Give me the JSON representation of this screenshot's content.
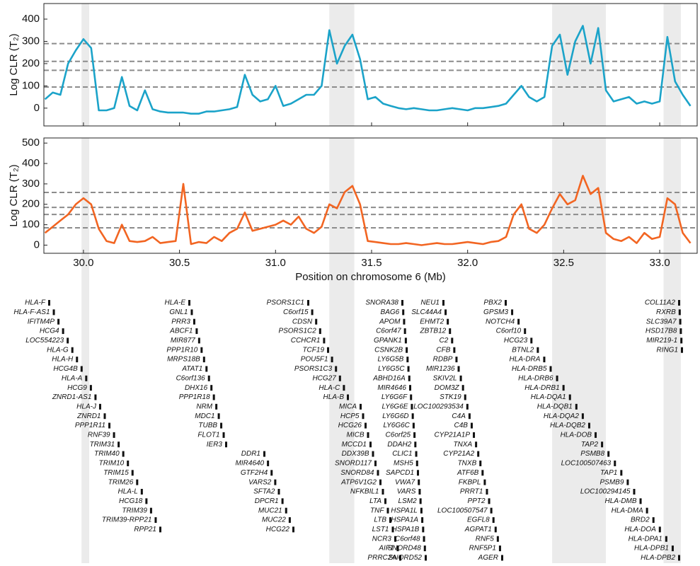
{
  "chart_data": [
    {
      "type": "line",
      "ylabel": "Log CLR (T₂)",
      "color": "#1ba3c9",
      "xlim": [
        29.794,
        33.195
      ],
      "ylim": [
        -80,
        470
      ],
      "yticks": [
        0,
        100,
        200,
        300,
        400
      ],
      "hlines": [
        95,
        170,
        210,
        290
      ],
      "shaded": [
        [
          29.99,
          30.03
        ],
        [
          31.28,
          31.41
        ],
        [
          32.44,
          32.72
        ],
        [
          33.02,
          33.11
        ]
      ],
      "x": [
        29.8,
        29.84,
        29.88,
        29.92,
        29.96,
        30,
        30.04,
        30.08,
        30.12,
        30.16,
        30.2,
        30.24,
        30.28,
        30.32,
        30.36,
        30.4,
        30.44,
        30.48,
        30.52,
        30.56,
        30.6,
        30.64,
        30.68,
        30.72,
        30.76,
        30.8,
        30.84,
        30.88,
        30.92,
        30.96,
        31,
        31.04,
        31.08,
        31.12,
        31.16,
        31.2,
        31.24,
        31.28,
        31.32,
        31.36,
        31.4,
        31.44,
        31.48,
        31.52,
        31.56,
        31.6,
        31.64,
        31.68,
        31.72,
        31.76,
        31.8,
        31.84,
        31.88,
        31.92,
        31.96,
        32,
        32.04,
        32.08,
        32.12,
        32.16,
        32.2,
        32.24,
        32.28,
        32.32,
        32.36,
        32.4,
        32.44,
        32.48,
        32.52,
        32.56,
        32.6,
        32.64,
        32.68,
        32.72,
        32.76,
        32.8,
        32.84,
        32.88,
        32.92,
        32.96,
        33,
        33.04,
        33.08,
        33.12,
        33.16
      ],
      "values": [
        40,
        70,
        60,
        200,
        260,
        310,
        270,
        -10,
        -10,
        0,
        140,
        10,
        -10,
        80,
        -5,
        -15,
        -20,
        -20,
        -20,
        -25,
        -25,
        -15,
        -15,
        -10,
        -5,
        5,
        150,
        60,
        30,
        40,
        100,
        10,
        20,
        40,
        60,
        60,
        100,
        350,
        200,
        280,
        330,
        220,
        40,
        50,
        20,
        10,
        0,
        -5,
        0,
        -5,
        -10,
        -10,
        -5,
        0,
        -5,
        -10,
        0,
        0,
        5,
        10,
        20,
        60,
        100,
        50,
        30,
        50,
        280,
        330,
        150,
        300,
        370,
        200,
        360,
        80,
        30,
        40,
        50,
        20,
        30,
        20,
        30,
        320,
        120,
        60,
        10
      ]
    },
    {
      "type": "line",
      "ylabel": "Log CLR (T₂)",
      "xlabel": "Position on chromosome 6 (Mb)",
      "color": "#f26522",
      "xlim": [
        29.794,
        33.195
      ],
      "ylim": [
        -40,
        525
      ],
      "yticks": [
        0,
        100,
        200,
        300,
        400,
        500
      ],
      "xticks": [
        {
          "value": 30,
          "label": "30.0"
        },
        30.5,
        {
          "value": 31,
          "label": "31.0"
        },
        31.5,
        {
          "value": 32,
          "label": "32.0"
        },
        32.5,
        {
          "value": 33,
          "label": "33.0"
        }
      ],
      "hlines": [
        85,
        150,
        185,
        258
      ],
      "shaded": [
        [
          29.99,
          30.03
        ],
        [
          31.28,
          31.41
        ],
        [
          32.44,
          32.72
        ],
        [
          33.02,
          33.11
        ]
      ],
      "x": [
        29.8,
        29.84,
        29.88,
        29.92,
        29.96,
        30,
        30.04,
        30.08,
        30.12,
        30.16,
        30.2,
        30.24,
        30.28,
        30.32,
        30.36,
        30.4,
        30.44,
        30.48,
        30.52,
        30.56,
        30.6,
        30.64,
        30.68,
        30.72,
        30.76,
        30.8,
        30.84,
        30.88,
        30.92,
        30.96,
        31,
        31.04,
        31.08,
        31.12,
        31.16,
        31.2,
        31.24,
        31.28,
        31.32,
        31.36,
        31.4,
        31.44,
        31.48,
        31.52,
        31.56,
        31.6,
        31.64,
        31.68,
        31.72,
        31.76,
        31.8,
        31.84,
        31.88,
        31.92,
        31.96,
        32,
        32.04,
        32.08,
        32.12,
        32.16,
        32.2,
        32.24,
        32.28,
        32.32,
        32.36,
        32.4,
        32.44,
        32.48,
        32.52,
        32.56,
        32.6,
        32.64,
        32.68,
        32.72,
        32.76,
        32.8,
        32.84,
        32.88,
        32.92,
        32.96,
        33,
        33.04,
        33.08,
        33.12,
        33.16
      ],
      "values": [
        60,
        90,
        120,
        150,
        200,
        230,
        200,
        80,
        20,
        10,
        100,
        20,
        15,
        20,
        40,
        10,
        15,
        20,
        300,
        5,
        15,
        10,
        40,
        20,
        60,
        80,
        160,
        70,
        80,
        90,
        100,
        120,
        100,
        140,
        80,
        60,
        90,
        200,
        180,
        260,
        290,
        200,
        20,
        15,
        10,
        5,
        5,
        10,
        5,
        0,
        5,
        10,
        5,
        5,
        10,
        15,
        10,
        5,
        15,
        20,
        40,
        150,
        200,
        80,
        60,
        100,
        180,
        250,
        200,
        220,
        340,
        250,
        280,
        60,
        30,
        20,
        40,
        10,
        60,
        30,
        40,
        230,
        200,
        60,
        10
      ]
    }
  ],
  "genes": {
    "columns": [
      [
        "HLA-F",
        "HLA-F-AS1",
        "IFITM4P",
        "HCG4",
        "LOC554223",
        "HLA-G",
        "HLA-H",
        "HCG4B",
        "HLA-A",
        "HCG9",
        "ZNRD1-AS1",
        "HLA-J",
        "ZNRD1",
        "PPP1R11",
        "RNF39",
        "TRIM31",
        "TRIM40",
        "TRIM10",
        "TRIM15",
        "TRIM26",
        "HLA-L",
        "HCG18",
        "TRIM39",
        "TRIM39-RPP21",
        "RPP21"
      ],
      [
        "HLA-E",
        "GNL1",
        "PRR3",
        "ABCF1",
        "MIR877",
        "PPP1R10",
        "MRPS18B",
        "ATAT1",
        "C6orf136",
        "DHX16",
        "PPP1R18",
        "NRM",
        "MDC1",
        "TUBB",
        "FLOT1",
        "IER3"
      ],
      [
        "DDR1",
        "MIR4640",
        "GTF2H4",
        "VARS2",
        "SFTA2",
        "DPCR1",
        "MUC21",
        "MUC22",
        "HCG22"
      ],
      [
        "PSORS1C1",
        "C6orf15",
        "CDSN",
        "PSORS1C2",
        "CCHCR1",
        "TCF19",
        "POU5F1",
        "PSORS1C3",
        "HCG27",
        "HLA-C",
        "HLA-B"
      ],
      [
        "MICA",
        "HCP5",
        "HCG26",
        "MICB",
        "MCCD1",
        "DDX39B",
        "SNORD117",
        "SNORD84",
        "ATP6V1G2",
        "NFKBIL1",
        "LTA",
        "TNF",
        "LTB",
        "LST1",
        "NCR3",
        "AIF1",
        "PRRC2A"
      ],
      [
        "SNORA38",
        "BAG6",
        "APOM",
        "C6orf47",
        "GPANK1",
        "CSNK2B",
        "LY6G5B",
        "LY6G5C",
        "ABHD16A",
        "MIR4646",
        "LY6G6F",
        "LY6G6E",
        "LY6G6D",
        "LY6G6C",
        "C6orf25",
        "DDAH2",
        "CLIC1",
        "MSH5",
        "SAPCD1",
        "VWA7",
        "VARS",
        "LSM2",
        "HSPA1L",
        "HSPA1A",
        "HSPA1B",
        "C6orf48",
        "SNORD48",
        "SNORD52"
      ],
      [
        "NEU1",
        "SLC44A4",
        "EHMT2",
        "ZBTB12",
        "C2",
        "CFB",
        "RDBP",
        "MIR1236",
        "SKIV2L",
        "DOM3Z",
        "STK19",
        "LOC100293534",
        "C4A",
        "C4B",
        "CYP21A1P",
        "TNXA",
        "CYP21A2",
        "TNXB",
        "ATF6B",
        "FKBPL",
        "PRRT1",
        "PPT2",
        "LOC100507547",
        "EGFL8",
        "AGPAT1",
        "RNF5",
        "RNF5P1",
        "AGER"
      ],
      [
        "PBX2",
        "GPSM3",
        "NOTCH4",
        "C6orf10",
        "HCG23",
        "BTNL2",
        "HLA-DRA",
        "HLA-DRB5",
        "HLA-DRB6",
        "HLA-DRB1",
        "HLA-DQA1",
        "HLA-DQB1",
        "HLA-DQA2",
        "HLA-DQB2",
        "HLA-DOB",
        "TAP2",
        "PSMB8",
        "LOC100507463",
        "TAP1",
        "PSMB9",
        "LOC100294145",
        "HLA-DMB",
        "HLA-DMA",
        "BRD2",
        "HLA-DOA",
        "HLA-DPA1",
        "HLA-DPB1",
        "HLA-DPB2"
      ],
      [
        "COL11A2",
        "RXRB",
        "SLC39A7",
        "HSD17B8",
        "MIR219-1",
        "RING1"
      ]
    ]
  }
}
